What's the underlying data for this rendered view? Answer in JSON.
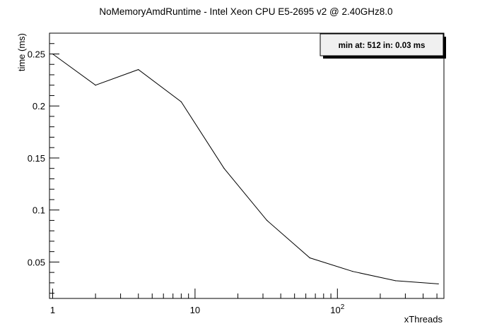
{
  "chart_data": {
    "type": "line",
    "title": "NoMemoryAmdRuntime - Intel Xeon CPU E5-2695 v2 @ 2.40GHz8.0",
    "xlabel": "xThreads",
    "ylabel": "time (ms)",
    "x_scale": "log",
    "xlim": [
      0.95,
      560
    ],
    "ylim": [
      0.015,
      0.27
    ],
    "x_major_ticks": [
      {
        "value": 1,
        "label": "1"
      },
      {
        "value": 10,
        "label": "10"
      },
      {
        "value": 100,
        "label_base": "10",
        "label_exp": "2"
      }
    ],
    "y_major_ticks": [
      {
        "value": 0.05,
        "label": "0.05"
      },
      {
        "value": 0.1,
        "label": "0.1"
      },
      {
        "value": 0.15,
        "label": "0.15"
      },
      {
        "value": 0.2,
        "label": "0.2"
      },
      {
        "value": 0.25,
        "label": "0.25"
      }
    ],
    "series": [
      {
        "x": [
          1,
          2,
          4,
          8,
          16,
          32,
          64,
          128,
          256,
          512
        ],
        "y": [
          0.25,
          0.22,
          0.235,
          0.204,
          0.14,
          0.09,
          0.054,
          0.041,
          0.032,
          0.029
        ],
        "color": "#000000"
      }
    ],
    "annotation": "min at: 512 in: 0.03 ms",
    "legend_position": "top-right",
    "grid": false
  }
}
